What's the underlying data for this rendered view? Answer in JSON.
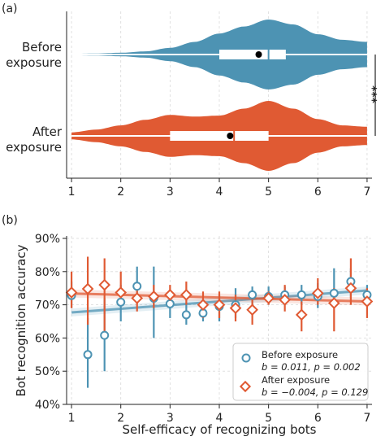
{
  "colors": {
    "before": "#4d93b3",
    "after": "#e05a33",
    "axis": "#222222",
    "grid": "#d9d9d9"
  },
  "chart_data": [
    {
      "panel_label": "(a)",
      "type": "violin",
      "categories": [
        "Before\nexposure",
        "After\nexposure"
      ],
      "xlim": [
        0.9,
        7.1
      ],
      "xticks": [
        "1",
        "2",
        "3",
        "4",
        "5",
        "6",
        "7"
      ],
      "grid": true,
      "series": [
        {
          "category": "Before exposure",
          "density": [
            [
              1,
              0.02
            ],
            [
              1.5,
              0.03
            ],
            [
              2,
              0.05
            ],
            [
              2.5,
              0.09
            ],
            [
              3,
              0.19
            ],
            [
              3.5,
              0.36
            ],
            [
              4,
              0.6
            ],
            [
              4.5,
              0.8
            ],
            [
              5,
              1.0
            ],
            [
              5.5,
              0.86
            ],
            [
              6,
              0.58
            ],
            [
              6.5,
              0.42
            ],
            [
              7,
              0.36
            ]
          ],
          "q1": 4.0,
          "median": 5.0,
          "q3": 5.35,
          "mean": 4.8
        },
        {
          "category": "After exposure",
          "density": [
            [
              1,
              0.1
            ],
            [
              1.5,
              0.18
            ],
            [
              2,
              0.3
            ],
            [
              2.5,
              0.46
            ],
            [
              3,
              0.6
            ],
            [
              3.5,
              0.55
            ],
            [
              4,
              0.58
            ],
            [
              4.5,
              0.78
            ],
            [
              5,
              1.0
            ],
            [
              5.5,
              0.78
            ],
            [
              6,
              0.48
            ],
            [
              6.5,
              0.3
            ],
            [
              7,
              0.26
            ]
          ],
          "q1": 3.0,
          "median": 4.3,
          "q3": 5.0,
          "mean": 4.22
        }
      ],
      "annotation": "***"
    },
    {
      "panel_label": "(b)",
      "type": "scatter",
      "xlabel": "Self-efficacy of recognizing bots",
      "ylabel": "Bot recognition accuracy",
      "xlim": [
        0.9,
        7.1
      ],
      "ylim": [
        0.4,
        0.9
      ],
      "xticks": [
        "1",
        "2",
        "3",
        "4",
        "5",
        "6",
        "7"
      ],
      "yticks": [
        "40%",
        "50%",
        "60%",
        "70%",
        "80%",
        "90%"
      ],
      "grid": true,
      "legend_position": "lower-right",
      "series": [
        {
          "name": "Before exposure",
          "stat": "b = 0.011, p = 0.002",
          "x": [
            1.0,
            1.33,
            1.67,
            2.0,
            2.33,
            2.67,
            3.0,
            3.33,
            3.67,
            4.0,
            4.33,
            4.67,
            5.0,
            5.33,
            5.67,
            6.0,
            6.33,
            6.67,
            7.0
          ],
          "y": [
            0.728,
            0.55,
            0.608,
            0.708,
            0.756,
            0.72,
            0.703,
            0.67,
            0.675,
            0.695,
            0.7,
            0.73,
            0.725,
            0.73,
            0.73,
            0.725,
            0.735,
            0.77,
            0.73
          ],
          "err_low": [
            0.69,
            0.45,
            0.5,
            0.65,
            0.71,
            0.6,
            0.66,
            0.64,
            0.65,
            0.65,
            0.66,
            0.7,
            0.7,
            0.7,
            0.7,
            0.69,
            0.7,
            0.72,
            0.7
          ],
          "err_high": [
            0.77,
            0.66,
            0.72,
            0.76,
            0.815,
            0.815,
            0.74,
            0.705,
            0.7,
            0.73,
            0.75,
            0.755,
            0.755,
            0.755,
            0.76,
            0.765,
            0.81,
            0.81,
            0.76
          ],
          "fit": [
            [
              1,
              0.677
            ],
            [
              7,
              0.743
            ]
          ]
        },
        {
          "name": "After exposure",
          "stat": "b = −0.004, p = 0.129",
          "x": [
            1.0,
            1.33,
            1.67,
            2.0,
            2.33,
            2.67,
            3.0,
            3.33,
            3.67,
            4.0,
            4.33,
            4.67,
            5.0,
            5.33,
            5.67,
            6.0,
            6.33,
            6.67,
            7.0
          ],
          "y": [
            0.737,
            0.748,
            0.76,
            0.737,
            0.72,
            0.725,
            0.73,
            0.73,
            0.7,
            0.7,
            0.69,
            0.685,
            0.72,
            0.715,
            0.67,
            0.735,
            0.705,
            0.75,
            0.71
          ],
          "err_low": [
            0.69,
            0.64,
            0.61,
            0.7,
            0.68,
            0.69,
            0.7,
            0.7,
            0.66,
            0.66,
            0.65,
            0.64,
            0.7,
            0.68,
            0.62,
            0.7,
            0.62,
            0.7,
            0.66
          ],
          "err_high": [
            0.8,
            0.845,
            0.84,
            0.8,
            0.76,
            0.76,
            0.76,
            0.77,
            0.74,
            0.74,
            0.73,
            0.72,
            0.74,
            0.76,
            0.71,
            0.78,
            0.75,
            0.84,
            0.75
          ],
          "fit": [
            [
              1,
              0.734
            ],
            [
              7,
              0.71
            ]
          ]
        }
      ]
    }
  ]
}
